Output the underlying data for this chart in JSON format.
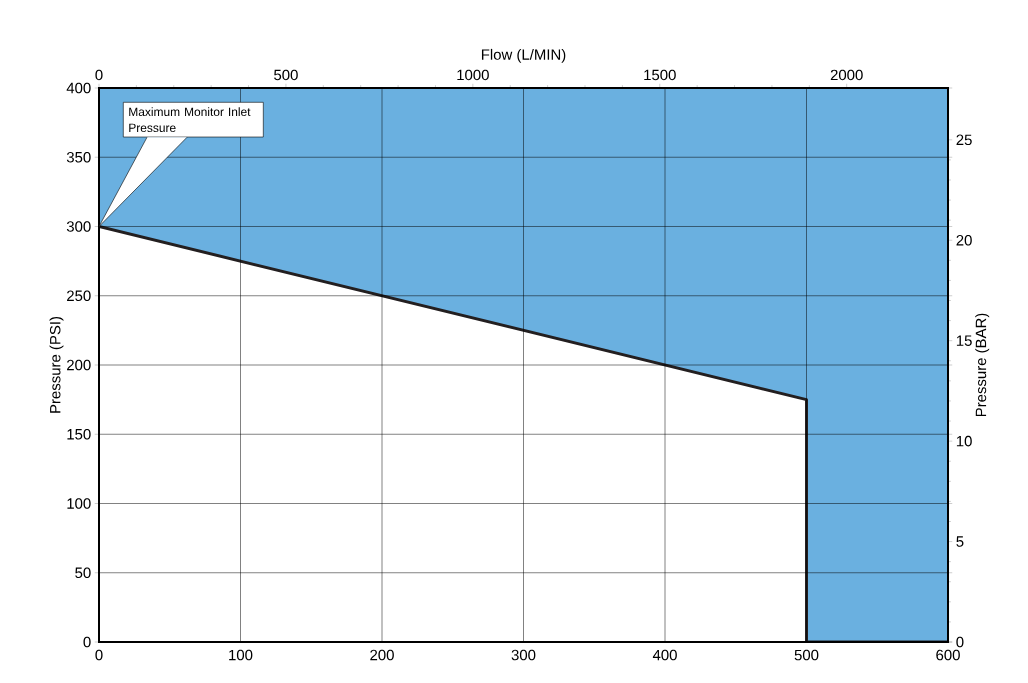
{
  "chart_data": {
    "type": "line",
    "xlabel": null,
    "ylabel": "Pressure (PSI)",
    "y2label": "Pressure (BAR)",
    "x2label": "Flow (L/MIN)",
    "xlim": [
      0,
      600
    ],
    "xticks": [
      0,
      100,
      200,
      300,
      400,
      500,
      600
    ],
    "ylim": [
      0,
      400
    ],
    "yticks": [
      0,
      50,
      100,
      150,
      200,
      250,
      300,
      350,
      400
    ],
    "x2lim": [
      0,
      2271
    ],
    "x2ticks": [
      0,
      500,
      1000,
      1500,
      2000
    ],
    "y2lim": [
      0,
      27.58
    ],
    "y2ticks": [
      0,
      5,
      10,
      15,
      20,
      25
    ],
    "grid": true,
    "series": [
      {
        "color": "#231f20",
        "x": [
          0,
          500,
          500,
          600
        ],
        "values": [
          300,
          175,
          0,
          0
        ],
        "lower": [
          300,
          175,
          0,
          0
        ],
        "upper": [
          400,
          400,
          400,
          400
        ]
      }
    ],
    "annotations": [
      "Maximum Monitor Inlet Pressure"
    ]
  }
}
